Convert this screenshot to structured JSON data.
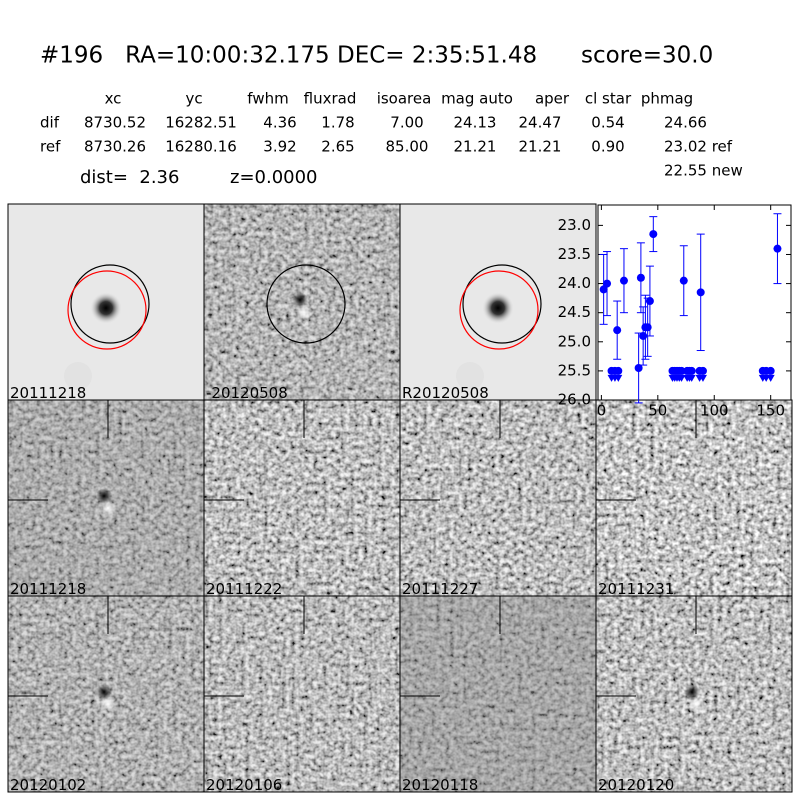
{
  "header": {
    "title": "#196   RA=10:00:32.175 DEC= 2:35:51.48      score=30.0"
  },
  "table": {
    "columns": [
      "xc",
      "yc",
      "fwhm",
      "fluxrad",
      "isoarea",
      "mag auto",
      "aper",
      "cl star",
      "phmag"
    ],
    "rows": [
      [
        "dif",
        "8730.52",
        "16282.51",
        "4.36",
        "1.78",
        "7.00",
        "24.13",
        "24.47",
        "0.54",
        "24.66"
      ],
      [
        "ref",
        "8730.26",
        "16280.16",
        "3.92",
        "2.65",
        "85.00",
        "21.21",
        "21.21",
        "0.90",
        "23.02 ref"
      ]
    ],
    "dist": "dist=  2.36",
    "z": "z=0.0000",
    "new_mag": "22.55 new"
  },
  "panels": [
    {
      "label": "20111218"
    },
    {
      "label": "-20120508"
    },
    {
      "label": "R20120508"
    },
    {
      "label": "20111218",
      "color": "#ff0000"
    },
    {
      "label": "20111222"
    },
    {
      "label": "20111227"
    },
    {
      "label": "20111231"
    },
    {
      "label": "20120102"
    },
    {
      "label": "20120106"
    },
    {
      "label": "20120118"
    },
    {
      "label": "20120120"
    }
  ],
  "chart_data": {
    "type": "scatter",
    "xlim": [
      -3,
      168
    ],
    "xticks": [
      0,
      50,
      100,
      150
    ],
    "ylim": [
      26,
      22.65
    ],
    "yticks": [
      {
        "value": 23,
        "label": "23.0"
      },
      {
        "value": 23.5,
        "label": "23.5"
      },
      {
        "value": 24,
        "label": "24.0"
      },
      {
        "value": 24.5,
        "label": "24.5"
      },
      {
        "value": 25,
        "label": "25.0"
      },
      {
        "value": 25.5,
        "label": "25.5"
      },
      {
        "value": 26,
        "label": "26.0"
      }
    ],
    "grid": false,
    "series": [
      {
        "name": "detections",
        "color": "#0000ff",
        "x": [
          2,
          5,
          14,
          20,
          33,
          35,
          37,
          39,
          41,
          43,
          46,
          73,
          88,
          156
        ],
        "values": [
          24.1,
          24.0,
          24.8,
          23.95,
          25.45,
          23.9,
          24.9,
          24.75,
          24.75,
          24.3,
          23.15,
          23.95,
          24.15,
          23.4
        ],
        "errors": [
          0.6,
          0.55,
          0.5,
          0.55,
          0.6,
          0.6,
          0.5,
          0.55,
          0.5,
          0.6,
          0.3,
          0.6,
          1.0,
          0.6
        ]
      },
      {
        "name": "limits",
        "color": "#0000ff",
        "x": [
          9,
          12,
          15,
          63,
          65,
          67,
          69,
          71,
          76,
          78,
          80,
          87,
          90,
          143,
          146,
          150
        ],
        "values": [
          25.5,
          25.5,
          25.5,
          25.5,
          25.5,
          25.5,
          25.5,
          25.5,
          25.5,
          25.5,
          25.5,
          25.5,
          25.5,
          25.5,
          25.5,
          25.5
        ]
      }
    ]
  }
}
